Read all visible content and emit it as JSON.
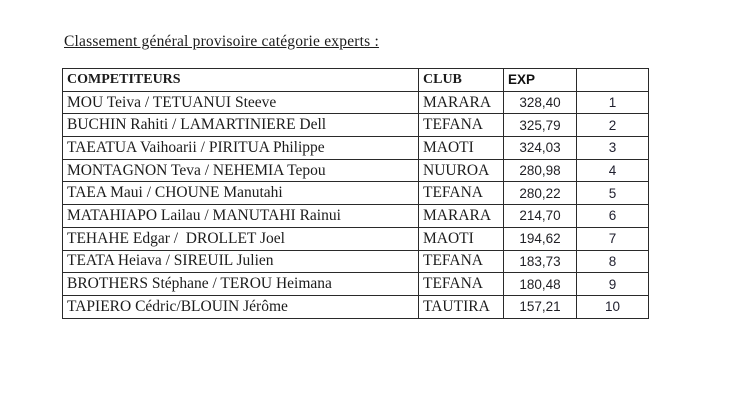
{
  "page": {
    "title": "Classement général provisoire catégorie experts :"
  },
  "table": {
    "headers": {
      "competitors": "COMPETITEURS",
      "club": "CLUB",
      "exp": "EXP",
      "rank": ""
    },
    "rows": [
      {
        "competiteurs": "MOU Teiva / TETUANUI Steeve",
        "club": "MARARA",
        "exp": "328,40",
        "rank": "1"
      },
      {
        "competiteurs": "BUCHIN Rahiti / LAMARTINIERE Dell",
        "club": "TEFANA",
        "exp": "325,79",
        "rank": "2"
      },
      {
        "competiteurs": "TAEATUA Vaihoarii / PIRITUA Philippe",
        "club": "MAOTI",
        "exp": "324,03",
        "rank": "3"
      },
      {
        "competiteurs": "MONTAGNON Teva / NEHEMIA Tepou",
        "club": "NUUROA",
        "exp": "280,98",
        "rank": "4"
      },
      {
        "competiteurs": "TAEA Maui / CHOUNE Manutahi",
        "club": "TEFANA",
        "exp": "280,22",
        "rank": "5"
      },
      {
        "competiteurs": "MATAHIAPO Lailau / MANUTAHI Rainui",
        "club": "MARARA",
        "exp": "214,70",
        "rank": "6"
      },
      {
        "competiteurs": "TEHAHE Edgar /  DROLLET Joel",
        "club": "MAOTI",
        "exp": "194,62",
        "rank": "7"
      },
      {
        "competiteurs": "TEATA Heiava / SIREUIL Julien",
        "club": "TEFANA",
        "exp": "183,73",
        "rank": "8"
      },
      {
        "competiteurs": "BROTHERS Stéphane / TEROU Heimana",
        "club": "TEFANA",
        "exp": "180,48",
        "rank": "9"
      },
      {
        "competiteurs": "TAPIERO Cédric/BLOUIN Jérôme",
        "club": "TAUTIRA",
        "exp": "157,21",
        "rank": "10"
      }
    ]
  }
}
